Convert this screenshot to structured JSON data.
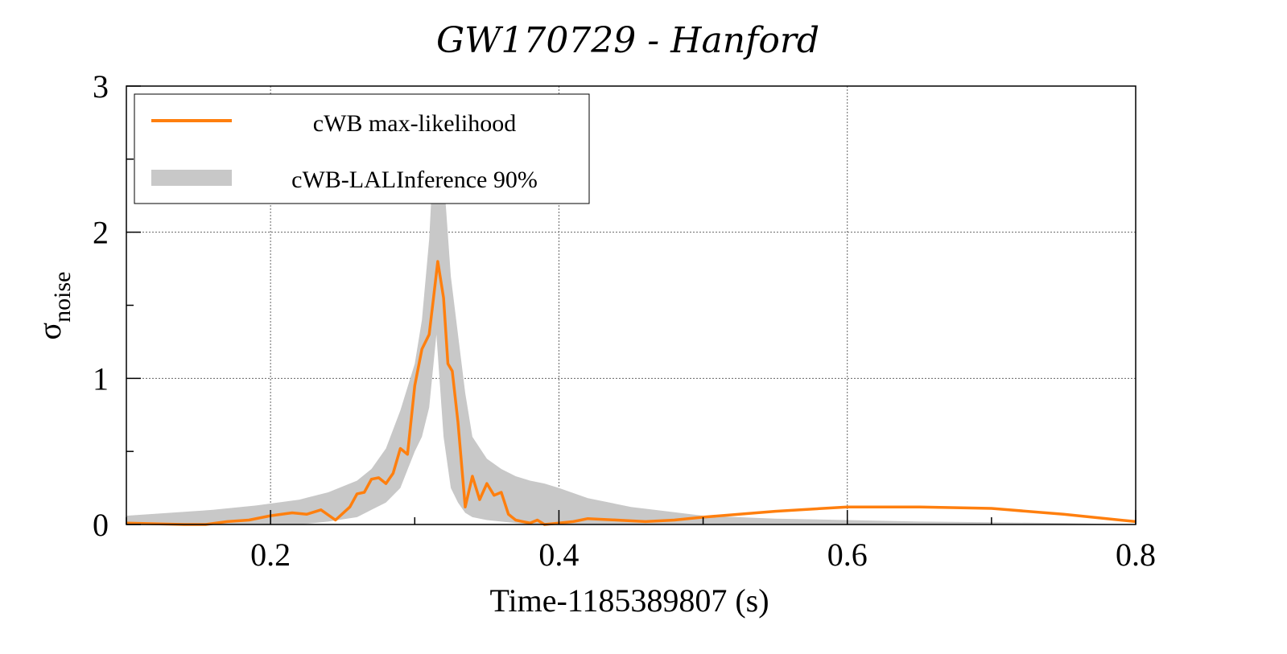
{
  "chart_data": {
    "type": "line",
    "title": "GW170729 - Hanford",
    "xlabel": "Time-1185389807 (s)",
    "ylabel": {
      "symbol": "σ",
      "subscript": "noise"
    },
    "xlim": [
      0.1,
      0.8
    ],
    "ylim": [
      0,
      3
    ],
    "xticks": [
      0.2,
      0.4,
      0.6,
      0.8
    ],
    "yticks": [
      0,
      1,
      2,
      3
    ],
    "grid": true,
    "legend_position": "top-left",
    "series": [
      {
        "name": "cWB max-likelihood",
        "kind": "line",
        "color": "#ff7f0e",
        "x": [
          0.1,
          0.14,
          0.155,
          0.17,
          0.185,
          0.2,
          0.215,
          0.225,
          0.235,
          0.245,
          0.255,
          0.26,
          0.265,
          0.27,
          0.275,
          0.28,
          0.285,
          0.29,
          0.295,
          0.3,
          0.305,
          0.31,
          0.313,
          0.316,
          0.32,
          0.323,
          0.326,
          0.33,
          0.335,
          0.34,
          0.345,
          0.35,
          0.355,
          0.36,
          0.365,
          0.37,
          0.375,
          0.38,
          0.385,
          0.39,
          0.4,
          0.41,
          0.42,
          0.44,
          0.46,
          0.48,
          0.5,
          0.55,
          0.6,
          0.65,
          0.7,
          0.75,
          0.8
        ],
        "y": [
          0.01,
          0.0,
          -0.01,
          0.02,
          0.03,
          0.06,
          0.08,
          0.07,
          0.1,
          0.03,
          0.12,
          0.21,
          0.22,
          0.31,
          0.32,
          0.28,
          0.35,
          0.52,
          0.48,
          0.95,
          1.2,
          1.3,
          1.55,
          1.8,
          1.55,
          1.1,
          1.05,
          0.7,
          0.12,
          0.33,
          0.17,
          0.28,
          0.2,
          0.22,
          0.07,
          0.03,
          0.02,
          0.01,
          0.03,
          0.0,
          0.01,
          0.02,
          0.04,
          0.03,
          0.02,
          0.03,
          0.05,
          0.09,
          0.12,
          0.12,
          0.11,
          0.07,
          0.02
        ]
      },
      {
        "name": "cWB-LALInference 90%",
        "kind": "band",
        "color": "#c8c8c8",
        "x": [
          0.1,
          0.13,
          0.16,
          0.19,
          0.22,
          0.24,
          0.26,
          0.27,
          0.28,
          0.29,
          0.3,
          0.305,
          0.31,
          0.315,
          0.32,
          0.325,
          0.33,
          0.335,
          0.34,
          0.35,
          0.36,
          0.37,
          0.38,
          0.39,
          0.4,
          0.42,
          0.45,
          0.5,
          0.55,
          0.6,
          0.65,
          0.7,
          0.75,
          0.8
        ],
        "upper": [
          0.06,
          0.08,
          0.1,
          0.13,
          0.17,
          0.22,
          0.3,
          0.38,
          0.52,
          0.78,
          1.1,
          1.4,
          1.95,
          2.9,
          2.4,
          1.7,
          1.3,
          0.9,
          0.6,
          0.45,
          0.38,
          0.33,
          0.3,
          0.28,
          0.25,
          0.18,
          0.12,
          0.06,
          0.04,
          0.03,
          0.02,
          0.015,
          0.01,
          0.0
        ],
        "lower": [
          0.0,
          0.0,
          0.0,
          0.0,
          0.0,
          0.02,
          0.05,
          0.1,
          0.15,
          0.25,
          0.5,
          0.6,
          0.8,
          1.3,
          0.6,
          0.25,
          0.15,
          0.08,
          0.05,
          0.03,
          0.02,
          0.01,
          0.0,
          0.0,
          0.0,
          0.0,
          0.0,
          0.0,
          0.0,
          0.0,
          0.0,
          0.0,
          0.0,
          0.0
        ]
      }
    ]
  }
}
